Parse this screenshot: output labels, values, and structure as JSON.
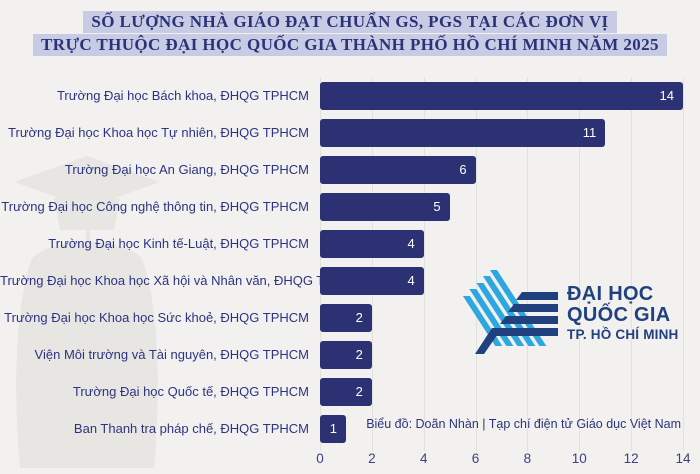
{
  "title": {
    "line1": "SỐ LƯỢNG NHÀ GIÁO ĐẠT CHUẨN GS, PGS TẠI CÁC ĐƠN VỊ",
    "line2": "TRỰC THUỘC ĐẠI HỌC QUỐC GIA THÀNH PHỐ HỒ CHÍ MINH NĂM 2025"
  },
  "chart_data": {
    "type": "bar",
    "orientation": "horizontal",
    "categories": [
      "Trường Đại học Bách khoa, ĐHQG TPHCM",
      "Trường Đại học Khoa học Tự nhiên, ĐHQG TPHCM",
      "Trường Đại học An Giang, ĐHQG TPHCM",
      "Trường Đại học Công nghệ thông tin, ĐHQG TPHCM",
      "Trường Đại học Kinh tế-Luật, ĐHQG TPHCM",
      "Trường Đại học Khoa học Xã hội và Nhân văn, ĐHQG TPHCM",
      "Trường Đại học Khoa học Sức khoẻ, ĐHQG TPHCM",
      "Viện Môi trường và Tài nguyên, ĐHQG TPHCM",
      "Trường Đại học Quốc tế, ĐHQG TPHCM",
      "Ban Thanh tra pháp chế, ĐHQG TPHCM"
    ],
    "values": [
      14,
      11,
      6,
      5,
      4,
      4,
      2,
      2,
      2,
      1
    ],
    "xlabel": "",
    "ylabel": "",
    "xlim": [
      0,
      14
    ],
    "x_ticks": [
      0,
      2,
      4,
      6,
      8,
      10,
      12,
      14
    ],
    "grid": true,
    "legend": false,
    "bar_color": "#2b3173",
    "value_labels": "inside-end, white"
  },
  "logo": {
    "line1": "ĐẠI HỌC",
    "line2": "QUỐC GIA",
    "line3": "TP. HỒ CHÍ MINH"
  },
  "credit": "Biểu đồ: Doãn Nhàn | Tạp chí điện tử Giáo dục Việt Nam",
  "colors": {
    "background": "#f2f1ef",
    "bar": "#2b3173",
    "title_text": "#2b3278",
    "title_highlight": "#c7cbe3",
    "label_text": "#2c3481",
    "gridline": "#e3e1de",
    "axis_text": "#3b4280",
    "value_text": "#ffffff",
    "logo_light_blue": "#2da7e0",
    "logo_navy": "#21417e",
    "credit_text": "#2c3579"
  }
}
